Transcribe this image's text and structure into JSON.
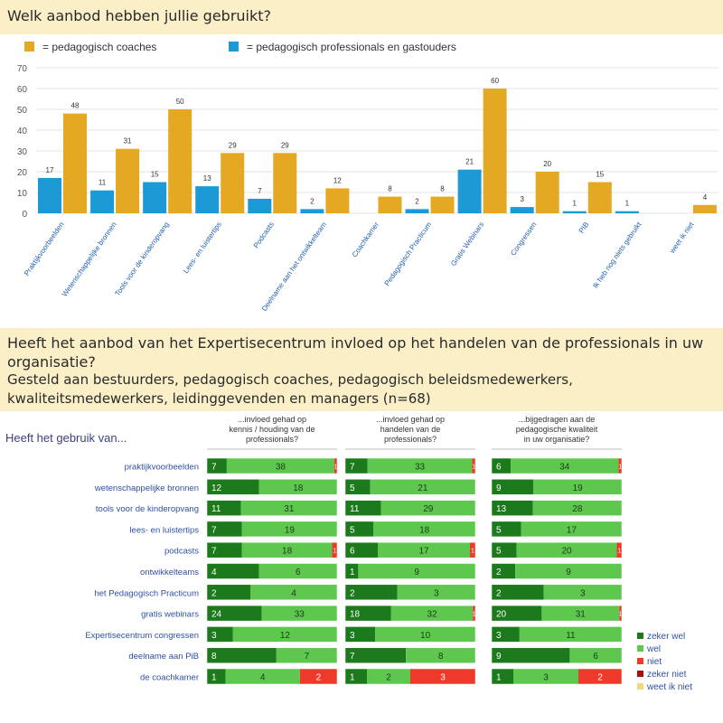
{
  "section1": {
    "title": "Welk aanbod hebben jullie gebruikt?"
  },
  "section2": {
    "title": "Heeft het aanbod van het Expertisecentrum invloed op het handelen van de professionals in uw organisatie?",
    "subtitle": "Gesteld aan bestuurders, pedagogisch coaches, pedagogisch beleidsmedewerkers, kwaliteitsmedewerkers, leidinggevenden en managers (n=68)"
  },
  "colors": {
    "coaches": "#e5a823",
    "professionals": "#1b9ad6",
    "zeker_wel": "#1c7a1c",
    "wel": "#5ec84e",
    "niet": "#ee3a2a",
    "zeker_niet": "#a81010",
    "weet_ik_niet": "#f5d77a"
  },
  "chart_data": [
    {
      "type": "bar",
      "categories": [
        "Praktijkvoorbeelden",
        "Wetenschappelijke bronnen",
        "Tools voor de kinderopvang",
        "Lees- en luistertips",
        "Podcasts",
        "Deelname aan het ontwikkelteam",
        "Coachkamer",
        "Pedagogisch Practicum",
        "Gratis Webinars",
        "Congressen",
        "PIB",
        "Ik heb nog niets gebruikt",
        "weet ik niet"
      ],
      "series": [
        {
          "name": "= pedagogisch professionals en gastouders",
          "values": [
            17,
            11,
            15,
            13,
            7,
            2,
            null,
            2,
            21,
            3,
            1,
            1,
            null
          ]
        },
        {
          "name": "= pedagogisch coaches",
          "values": [
            48,
            31,
            50,
            29,
            29,
            12,
            8,
            8,
            60,
            20,
            15,
            null,
            4
          ]
        }
      ],
      "ylim": [
        0,
        70
      ],
      "yticks": [
        0,
        10,
        20,
        30,
        40,
        50,
        60,
        70
      ],
      "grid": true,
      "legend": "top-left"
    },
    {
      "type": "bar",
      "stacked": true,
      "orientation": "horizontal",
      "title": "Heeft het gebruik van...",
      "panels": [
        "...invloed gehad op kennis / houding van de professionals?",
        "...invloed gehad op handelen van de professionals?",
        "...bijgedragen aan de pedagogische kwaliteit in uw organisatie?"
      ],
      "categories": [
        "praktijkvoorbeelden",
        "wetenschappelijke bronnen",
        "tools voor de kinderopvang",
        "lees- en luistertips",
        "podcasts",
        "ontwikkelteams",
        "het Pedagogisch Practicum",
        "gratis webinars",
        "Expertisecentrum congressen",
        "deelname aan PiB",
        "de coachkamer"
      ],
      "series_names": [
        "zeker wel",
        "wel",
        "niet",
        "zeker niet",
        "weet ik niet"
      ],
      "data": [
        [
          [
            7,
            38,
            1
          ],
          [
            12,
            18,
            0
          ],
          [
            11,
            31,
            0
          ],
          [
            7,
            19,
            0
          ],
          [
            7,
            18,
            1
          ],
          [
            4,
            6,
            0
          ],
          [
            2,
            4,
            0
          ],
          [
            24,
            33,
            0
          ],
          [
            3,
            12,
            0
          ],
          [
            8,
            7,
            0
          ],
          [
            1,
            4,
            2
          ]
        ],
        [
          [
            7,
            33,
            1
          ],
          [
            5,
            21,
            0
          ],
          [
            11,
            29,
            0
          ],
          [
            5,
            18,
            0
          ],
          [
            6,
            17,
            1
          ],
          [
            1,
            9,
            0
          ],
          [
            2,
            3,
            0
          ],
          [
            18,
            32,
            1
          ],
          [
            3,
            10,
            0
          ],
          [
            7,
            8,
            0
          ],
          [
            1,
            2,
            3
          ]
        ],
        [
          [
            6,
            34,
            1
          ],
          [
            9,
            19,
            0
          ],
          [
            13,
            28,
            0
          ],
          [
            5,
            17,
            0
          ],
          [
            5,
            20,
            1
          ],
          [
            2,
            9,
            0
          ],
          [
            2,
            3,
            0
          ],
          [
            20,
            31,
            1
          ],
          [
            3,
            11,
            0
          ],
          [
            9,
            6,
            0
          ],
          [
            1,
            3,
            2
          ]
        ]
      ],
      "legend": "right"
    }
  ]
}
